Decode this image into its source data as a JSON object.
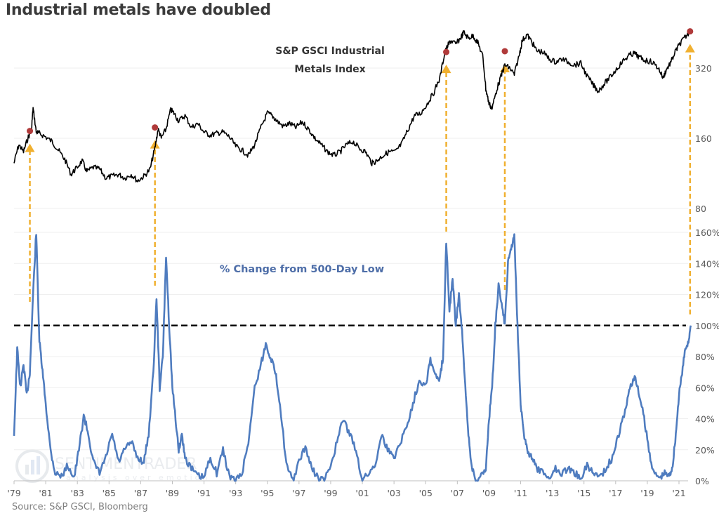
{
  "title": "Industrial metals have doubled",
  "source": "Source: S&P GSCI, Bloomberg",
  "watermark": {
    "name": "SENTIMENTRADER",
    "tagline": "analysis over emotion"
  },
  "colors": {
    "index_line": "#000000",
    "pct_line": "#4f7cbf",
    "arrow": "#f0b030",
    "marker": "#b03a3a",
    "threshold": "#000000",
    "grid": "#efefef",
    "axis": "#bfbfbf"
  },
  "chart_data": [
    {
      "type": "line",
      "title": "S&P GSCI Industrial Metals Index",
      "title_lines": [
        "S&P GSCI Industrial",
        "Metals Index"
      ],
      "yscale": "log",
      "ylim": [
        80,
        480
      ],
      "yticks": [
        80,
        160,
        320
      ],
      "ytick_labels": [
        "80",
        "160",
        "320"
      ],
      "grid": true,
      "series": [
        {
          "name": "S&P GSCI Industrial Metals Index",
          "x": [
            1979.0,
            1979.3,
            1979.6,
            1979.9,
            1980.1,
            1980.2,
            1980.4,
            1980.6,
            1981.0,
            1981.4,
            1981.8,
            1982.2,
            1982.6,
            1982.9,
            1983.3,
            1983.6,
            1984.0,
            1984.4,
            1984.8,
            1985.2,
            1985.6,
            1986.0,
            1986.4,
            1986.8,
            1987.2,
            1987.6,
            1987.9,
            1988.1,
            1988.3,
            1988.6,
            1988.9,
            1989.1,
            1989.4,
            1989.8,
            1990.2,
            1990.6,
            1991.0,
            1991.4,
            1991.8,
            1992.2,
            1992.6,
            1993.0,
            1993.4,
            1993.8,
            1994.2,
            1994.6,
            1995.0,
            1995.3,
            1995.6,
            1996.0,
            1996.4,
            1996.8,
            1997.2,
            1997.6,
            1998.0,
            1998.4,
            1998.8,
            1999.2,
            1999.6,
            2000.0,
            2000.4,
            2000.8,
            2001.2,
            2001.6,
            2001.9,
            2002.3,
            2002.7,
            2003.1,
            2003.5,
            2003.9,
            2004.3,
            2004.7,
            2005.1,
            2005.5,
            2005.9,
            2006.2,
            2006.4,
            2006.6,
            2006.9,
            2007.2,
            2007.4,
            2007.7,
            2008.0,
            2008.3,
            2008.6,
            2008.8,
            2009.0,
            2009.2,
            2009.5,
            2009.8,
            2010.0,
            2010.3,
            2010.6,
            2010.9,
            2011.1,
            2011.4,
            2011.7,
            2012.0,
            2012.4,
            2012.8,
            2013.2,
            2013.6,
            2014.0,
            2014.4,
            2014.8,
            2015.2,
            2015.6,
            2015.9,
            2016.3,
            2016.7,
            2017.1,
            2017.5,
            2017.9,
            2018.2,
            2018.5,
            2018.9,
            2019.3,
            2019.7,
            2020.0,
            2020.2,
            2020.5,
            2020.8,
            2021.1,
            2021.4,
            2021.7
          ],
          "y": [
            125,
            150,
            140,
            162,
            172,
            215,
            170,
            168,
            162,
            155,
            142,
            130,
            112,
            118,
            128,
            115,
            120,
            118,
            108,
            110,
            112,
            108,
            112,
            105,
            110,
            118,
            145,
            175,
            160,
            175,
            212,
            205,
            190,
            200,
            178,
            185,
            170,
            165,
            168,
            170,
            162,
            148,
            142,
            135,
            150,
            178,
            205,
            200,
            190,
            180,
            185,
            178,
            188,
            175,
            160,
            150,
            140,
            135,
            140,
            150,
            155,
            145,
            140,
            125,
            128,
            135,
            140,
            140,
            152,
            175,
            200,
            205,
            225,
            250,
            290,
            370,
            400,
            420,
            405,
            430,
            455,
            430,
            440,
            410,
            360,
            260,
            225,
            215,
            260,
            300,
            330,
            320,
            300,
            360,
            420,
            445,
            415,
            380,
            375,
            350,
            340,
            350,
            340,
            330,
            335,
            295,
            270,
            255,
            275,
            295,
            320,
            345,
            365,
            370,
            355,
            345,
            340,
            320,
            290,
            315,
            340,
            380,
            410,
            435,
            460
          ]
        }
      ],
      "markers": [
        {
          "x": 1980.0,
          "y": 172
        },
        {
          "x": 1987.9,
          "y": 178
        },
        {
          "x": 2006.3,
          "y": 375
        },
        {
          "x": 2010.0,
          "y": 378
        },
        {
          "x": 2021.7,
          "y": 460
        }
      ]
    },
    {
      "type": "line",
      "title": "% Change from 500-Day Low",
      "ylim": [
        0,
        160
      ],
      "yticks": [
        0,
        20,
        40,
        60,
        80,
        100,
        120,
        140,
        160
      ],
      "ytick_labels": [
        "0%",
        "20%",
        "40%",
        "60%",
        "80%",
        "100%",
        "120%",
        "140%",
        "160%"
      ],
      "threshold": 100,
      "grid": true,
      "series": [
        {
          "name": "% Change from 500-Day Low",
          "x": [
            1979.0,
            1979.2,
            1979.4,
            1979.6,
            1979.8,
            1980.0,
            1980.2,
            1980.4,
            1980.6,
            1980.8,
            1981.0,
            1981.3,
            1981.6,
            1982.0,
            1982.4,
            1982.8,
            1983.1,
            1983.4,
            1983.7,
            1984.0,
            1984.4,
            1984.8,
            1985.2,
            1985.6,
            1986.0,
            1986.4,
            1986.8,
            1987.2,
            1987.5,
            1987.8,
            1988.0,
            1988.2,
            1988.4,
            1988.6,
            1988.8,
            1989.0,
            1989.2,
            1989.4,
            1989.6,
            1989.8,
            1990.2,
            1990.6,
            1991.0,
            1991.4,
            1991.8,
            1992.2,
            1992.6,
            1993.0,
            1993.4,
            1993.8,
            1994.2,
            1994.6,
            1994.9,
            1995.2,
            1995.5,
            1995.8,
            1996.2,
            1996.6,
            1997.0,
            1997.4,
            1997.8,
            1998.2,
            1998.6,
            1999.0,
            1999.4,
            1999.8,
            2000.2,
            2000.6,
            2001.0,
            2001.4,
            2001.8,
            2002.2,
            2002.6,
            2003.0,
            2003.4,
            2003.8,
            2004.2,
            2004.6,
            2005.0,
            2005.3,
            2005.6,
            2005.9,
            2006.1,
            2006.3,
            2006.5,
            2006.7,
            2006.9,
            2007.1,
            2007.3,
            2007.5,
            2007.7,
            2007.9,
            2008.2,
            2008.5,
            2008.8,
            2009.0,
            2009.2,
            2009.4,
            2009.6,
            2009.8,
            2010.0,
            2010.2,
            2010.4,
            2010.6,
            2010.8,
            2011.0,
            2011.2,
            2011.4,
            2011.7,
            2012.0,
            2012.4,
            2012.8,
            2013.2,
            2013.6,
            2014.0,
            2014.4,
            2014.8,
            2015.2,
            2015.6,
            2016.0,
            2016.4,
            2016.8,
            2017.2,
            2017.6,
            2017.9,
            2018.2,
            2018.5,
            2018.8,
            2019.1,
            2019.4,
            2019.8,
            2020.1,
            2020.4,
            2020.6,
            2020.8,
            2021.0,
            2021.2,
            2021.4,
            2021.6,
            2021.75
          ],
          "y": [
            30,
            85,
            60,
            75,
            55,
            70,
            120,
            160,
            90,
            70,
            50,
            20,
            5,
            3,
            10,
            2,
            20,
            42,
            30,
            12,
            5,
            15,
            30,
            12,
            20,
            25,
            15,
            12,
            30,
            70,
            118,
            60,
            80,
            145,
            100,
            60,
            40,
            20,
            30,
            15,
            8,
            3,
            2,
            15,
            5,
            20,
            3,
            0,
            5,
            25,
            60,
            75,
            88,
            80,
            70,
            50,
            10,
            0,
            12,
            22,
            8,
            2,
            0,
            10,
            25,
            40,
            30,
            20,
            0,
            5,
            10,
            30,
            20,
            15,
            25,
            35,
            50,
            65,
            62,
            78,
            68,
            65,
            80,
            155,
            110,
            130,
            100,
            120,
            95,
            60,
            30,
            10,
            0,
            3,
            8,
            40,
            60,
            100,
            125,
            115,
            100,
            140,
            150,
            158,
            100,
            50,
            30,
            20,
            15,
            8,
            5,
            2,
            8,
            5,
            8,
            5,
            2,
            10,
            5,
            3,
            8,
            15,
            30,
            45,
            60,
            67,
            55,
            40,
            20,
            5,
            2,
            5,
            3,
            10,
            30,
            55,
            70,
            85,
            90,
            100
          ]
        }
      ]
    }
  ],
  "x_axis": {
    "tick_labels": [
      "'79",
      "'81",
      "'83",
      "'85",
      "'87",
      "'89",
      "'91",
      "'93",
      "'95",
      "'97",
      "'99",
      "'01",
      "'03",
      "'05",
      "'07",
      "'09",
      "'11",
      "'13",
      "'15",
      "'17",
      "'19",
      "'21"
    ],
    "tick_years": [
      1979,
      1981,
      1983,
      1985,
      1987,
      1989,
      1991,
      1993,
      1995,
      1997,
      1999,
      2001,
      2003,
      2005,
      2007,
      2009,
      2011,
      2013,
      2015,
      2017,
      2019,
      2021
    ],
    "range": [
      1979.0,
      2021.8
    ]
  }
}
